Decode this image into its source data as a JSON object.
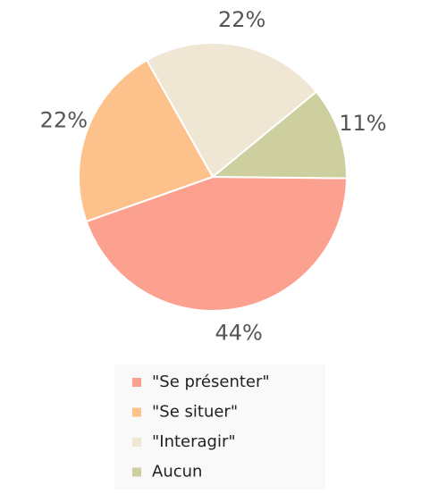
{
  "chart_data": {
    "type": "pie",
    "categories": [
      "\"Se présenter\"",
      "\"Se situer\"",
      "\"Interagir\"",
      "Aucun"
    ],
    "values": [
      44,
      22,
      22,
      11
    ],
    "value_labels": [
      "44%",
      "22%",
      "22%",
      "11%"
    ],
    "colors": [
      "#fca08f",
      "#fdc28c",
      "#efe6d4",
      "#cdcf9f"
    ],
    "legend": "bottom"
  }
}
